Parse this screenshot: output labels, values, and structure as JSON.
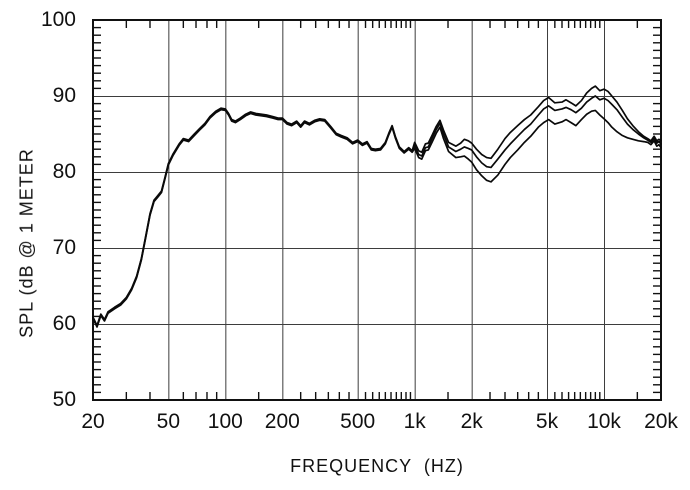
{
  "figure": {
    "background_color": "#ffffff",
    "frame_color": "#111111",
    "grid_color": "#3d3d3d",
    "curve_color": "#0a0a0a",
    "text_color": "#111111"
  },
  "chart_data": {
    "type": "line",
    "title": "",
    "xlabel": "FREQUENCY  (HZ)",
    "ylabel": "SPL (dB @ 1 METER",
    "x_scale": "log",
    "xlim": [
      20,
      20000
    ],
    "ylim": [
      50,
      100
    ],
    "grid": true,
    "legend_position": "none",
    "x_ticks": [
      {
        "value": 20,
        "label": "20"
      },
      {
        "value": 50,
        "label": "50"
      },
      {
        "value": 100,
        "label": "100"
      },
      {
        "value": 200,
        "label": "200"
      },
      {
        "value": 500,
        "label": "500"
      },
      {
        "value": 1000,
        "label": "1k"
      },
      {
        "value": 2000,
        "label": "2k"
      },
      {
        "value": 5000,
        "label": "5k"
      },
      {
        "value": 10000,
        "label": "10k"
      },
      {
        "value": 20000,
        "label": "20k"
      }
    ],
    "y_ticks": [
      {
        "value": 50,
        "label": "50"
      },
      {
        "value": 60,
        "label": "60"
      },
      {
        "value": 70,
        "label": "70"
      },
      {
        "value": 80,
        "label": "80"
      },
      {
        "value": 90,
        "label": "90"
      },
      {
        "value": 100,
        "label": "100"
      }
    ],
    "x_minor_ticks": [
      30,
      40,
      60,
      70,
      80,
      90,
      150,
      250,
      300,
      350,
      400,
      450,
      550,
      600,
      650,
      700,
      750,
      800,
      850,
      900,
      950,
      1500,
      2500,
      3000,
      3500,
      4000,
      4500,
      5500,
      6000,
      6500,
      7000,
      7500,
      8000,
      8500,
      9000,
      9500,
      15000
    ],
    "y_minor_step": 1,
    "x": [
      20,
      21,
      22,
      23,
      24,
      26,
      28,
      30,
      32,
      34,
      36,
      38,
      40,
      42,
      44,
      46,
      48,
      50,
      53,
      57,
      60,
      64,
      68,
      73,
      78,
      83,
      89,
      95,
      100,
      104,
      108,
      113,
      120,
      128,
      136,
      145,
      155,
      165,
      178,
      190,
      200,
      212,
      224,
      238,
      250,
      262,
      278,
      296,
      315,
      335,
      360,
      385,
      410,
      440,
      470,
      500,
      530,
      560,
      590,
      620,
      660,
      700,
      730,
      760,
      790,
      830,
      880,
      930,
      970,
      1000,
      1050,
      1090,
      1140,
      1180,
      1240,
      1300,
      1360,
      1420,
      1510,
      1650,
      1750,
      1830,
      1920,
      2000,
      2120,
      2260,
      2400,
      2530,
      2750,
      3000,
      3200,
      3500,
      3800,
      4100,
      4500,
      4800,
      5100,
      5500,
      6000,
      6300,
      6700,
      7100,
      7600,
      8100,
      8600,
      9000,
      9500,
      10000,
      10500,
      11000,
      11700,
      12500,
      13300,
      14200,
      15200,
      16200,
      17000,
      17700,
      18400,
      19000,
      19500,
      20000
    ],
    "series": [
      {
        "name": "trace-upper",
        "values": [
          60.9,
          59.8,
          61.3,
          60.6,
          61.6,
          62.2,
          62.7,
          63.5,
          64.7,
          66.3,
          68.6,
          71.6,
          74.5,
          76.3,
          76.9,
          77.5,
          79.3,
          81.1,
          82.4,
          83.7,
          84.4,
          84.2,
          84.9,
          85.7,
          86.4,
          87.3,
          88.0,
          88.4,
          88.3,
          87.7,
          86.9,
          86.7,
          87.1,
          87.6,
          87.9,
          87.7,
          87.6,
          87.5,
          87.3,
          87.1,
          87.1,
          86.5,
          86.3,
          86.7,
          86.1,
          86.7,
          86.4,
          86.8,
          87.0,
          86.9,
          86.0,
          85.1,
          84.8,
          84.5,
          83.9,
          84.2,
          83.7,
          84.0,
          83.1,
          83.0,
          83.1,
          83.9,
          85.1,
          86.1,
          84.7,
          83.3,
          82.7,
          83.2,
          82.8,
          83.9,
          82.8,
          82.6,
          83.7,
          83.8,
          84.9,
          86.0,
          86.8,
          85.5,
          83.9,
          83.4,
          83.8,
          84.3,
          84.1,
          83.8,
          83.0,
          82.3,
          81.9,
          81.8,
          83.0,
          84.4,
          85.2,
          86.1,
          86.9,
          87.5,
          88.6,
          89.4,
          89.8,
          89.1,
          89.2,
          89.5,
          89.1,
          88.7,
          89.4,
          90.4,
          91.0,
          91.3,
          90.7,
          90.9,
          90.6,
          90.0,
          89.2,
          88.1,
          87.0,
          86.1,
          85.3,
          84.7,
          84.4,
          84.1,
          84.7,
          84.1,
          84.3,
          84.1
        ]
      },
      {
        "name": "trace-middle",
        "values": [
          60.8,
          59.7,
          61.2,
          60.5,
          61.5,
          62.1,
          62.6,
          63.4,
          64.6,
          66.2,
          68.5,
          71.5,
          74.4,
          76.2,
          76.8,
          77.4,
          79.2,
          81.0,
          82.3,
          83.6,
          84.3,
          84.1,
          84.8,
          85.6,
          86.3,
          87.2,
          87.9,
          88.3,
          88.2,
          87.6,
          86.8,
          86.6,
          87.0,
          87.5,
          87.8,
          87.6,
          87.5,
          87.4,
          87.2,
          87.0,
          87.0,
          86.4,
          86.2,
          86.6,
          86.0,
          86.6,
          86.3,
          86.7,
          86.9,
          86.8,
          85.9,
          85.0,
          84.7,
          84.4,
          83.8,
          84.1,
          83.6,
          83.9,
          83.0,
          82.9,
          83.0,
          83.8,
          85.0,
          86.0,
          84.6,
          83.2,
          82.6,
          83.1,
          82.7,
          83.5,
          82.3,
          82.1,
          83.2,
          83.3,
          84.5,
          85.6,
          86.4,
          85.0,
          83.3,
          82.7,
          83.0,
          83.3,
          83.1,
          82.9,
          82.0,
          81.2,
          80.7,
          80.6,
          81.7,
          82.9,
          83.7,
          84.7,
          85.6,
          86.3,
          87.5,
          88.3,
          88.7,
          88.1,
          88.3,
          88.5,
          88.2,
          87.8,
          88.4,
          89.2,
          89.7,
          90.0,
          89.5,
          89.7,
          89.4,
          88.9,
          88.2,
          87.2,
          86.3,
          85.6,
          85.0,
          84.5,
          84.2,
          83.9,
          84.4,
          83.8,
          84.0,
          83.7
        ]
      },
      {
        "name": "trace-lower",
        "values": [
          60.7,
          59.6,
          61.1,
          60.4,
          61.4,
          62.0,
          62.5,
          63.3,
          64.5,
          66.1,
          68.4,
          71.4,
          74.3,
          76.1,
          76.7,
          77.3,
          79.1,
          80.9,
          82.2,
          83.5,
          84.2,
          84.0,
          84.7,
          85.5,
          86.2,
          87.1,
          87.8,
          88.2,
          88.1,
          87.5,
          86.7,
          86.5,
          86.9,
          87.4,
          87.7,
          87.5,
          87.4,
          87.3,
          87.1,
          86.9,
          86.9,
          86.3,
          86.1,
          86.5,
          85.9,
          86.5,
          86.2,
          86.6,
          86.8,
          86.7,
          85.8,
          84.9,
          84.6,
          84.3,
          83.7,
          84.0,
          83.5,
          83.8,
          82.9,
          82.8,
          82.9,
          83.7,
          84.9,
          85.9,
          84.5,
          83.1,
          82.5,
          83.0,
          82.6,
          83.1,
          81.9,
          81.7,
          82.8,
          82.9,
          84.0,
          85.1,
          85.9,
          84.4,
          82.7,
          81.9,
          82.0,
          82.1,
          81.7,
          81.3,
          80.3,
          79.5,
          78.9,
          78.7,
          79.6,
          81.0,
          81.9,
          82.9,
          83.9,
          84.7,
          85.9,
          86.5,
          86.9,
          86.3,
          86.6,
          86.9,
          86.5,
          86.1,
          86.9,
          87.6,
          88.0,
          88.1,
          87.5,
          87.0,
          86.5,
          85.9,
          85.3,
          84.8,
          84.5,
          84.3,
          84.1,
          84.0,
          83.9,
          83.6,
          84.1,
          83.4,
          83.6,
          83.2
        ]
      }
    ]
  }
}
